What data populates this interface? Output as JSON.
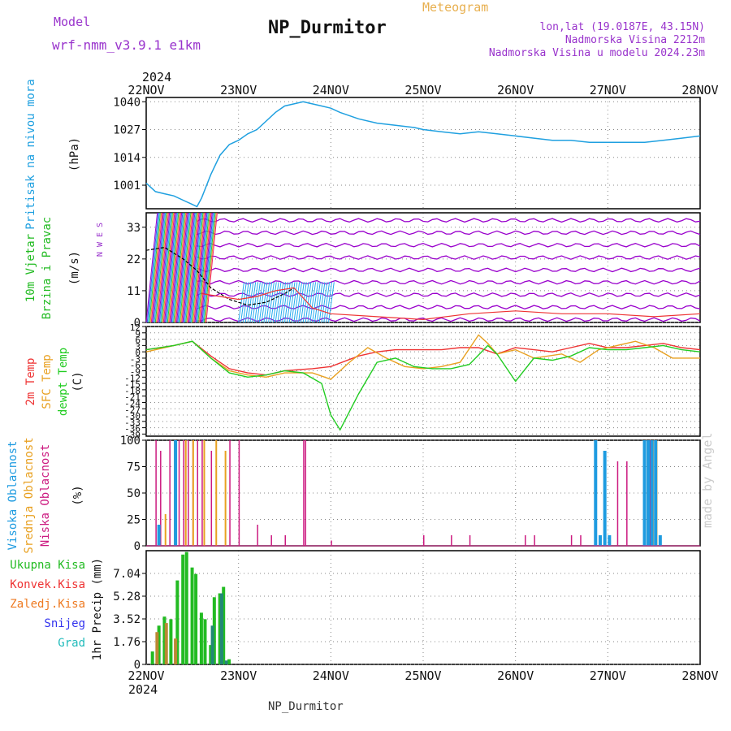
{
  "header": {
    "model_label": "Model",
    "model_value": "wrf-nmm_v3.9.1 e1km",
    "title": "NP_Durmitor",
    "meteogram_label": "Meteogram",
    "coords": "lon,lat (19.0187E, 43.15N)",
    "elevation": "Nadmorska Visina 2212m",
    "model_elevation": "Nadmorska Visina u modelu 2024.23m",
    "watermark": "made by Angel",
    "footer": "NP_Durmitor",
    "year_top": "2024",
    "year_bottom": "2024"
  },
  "colors": {
    "pressure": "#1fa0e0",
    "wind_label": "#22bb22",
    "t2m": "#ee3333",
    "tsfc": "#e8a020",
    "dewpt": "#22cc22",
    "high_cloud": "#1e9be0",
    "mid_cloud": "#e8a020",
    "low_cloud": "#cc1a80",
    "rain": "#22bb22",
    "conv_rain": "#ee3333",
    "frz_rain": "#ee7a22",
    "snow": "#3333ee",
    "grad": "#22bbbb",
    "accent": "#9933cc"
  },
  "chart_data": [
    {
      "type": "line",
      "name": "pressure",
      "ylabel_left": "Pritisak na nivou mora",
      "unit": "(hPa)",
      "x_ticks": [
        "22NOV",
        "23NOV",
        "24NOV",
        "25NOV",
        "26NOV",
        "27NOV",
        "28NOV"
      ],
      "ylim": [
        990,
        1042
      ],
      "yticks": [
        "1040",
        "1027",
        "1014",
        "1001"
      ],
      "series": [
        {
          "x": [
            0,
            0.1,
            0.2,
            0.3,
            0.4,
            0.5,
            0.55,
            0.6,
            0.7,
            0.8,
            0.9,
            1.0,
            1.1,
            1.2,
            1.3,
            1.4,
            1.5,
            1.6,
            1.7,
            1.8,
            1.9,
            2.0,
            2.1,
            2.3,
            2.5,
            2.7,
            2.9,
            3.0,
            3.2,
            3.4,
            3.6,
            3.8,
            4.0,
            4.2,
            4.4,
            4.6,
            4.8,
            5.0,
            5.2,
            5.4,
            5.6,
            5.8,
            6.0
          ],
          "y": [
            1002,
            998,
            997,
            996,
            994,
            992,
            991,
            995,
            1006,
            1015,
            1020,
            1022,
            1025,
            1027,
            1031,
            1035,
            1038,
            1039,
            1040,
            1039,
            1038,
            1037,
            1035,
            1032,
            1030,
            1029,
            1028,
            1027,
            1026,
            1025,
            1026,
            1025,
            1024,
            1023,
            1022,
            1022,
            1021,
            1021,
            1021,
            1021,
            1022,
            1023,
            1024
          ]
        }
      ]
    },
    {
      "type": "line",
      "name": "wind",
      "ylabel_left_1": "10m Vjetar",
      "ylabel_left_2": "Brzina i Pravac",
      "unit": "(m/s)",
      "compass": "N W E S",
      "ylim": [
        0,
        38
      ],
      "yticks": [
        "33",
        "22",
        "11",
        "0"
      ],
      "series": [
        {
          "x": [
            0,
            0.2,
            0.4,
            0.55,
            0.7,
            0.9,
            1.1,
            1.3,
            1.5,
            1.6
          ],
          "y": [
            25,
            26,
            22,
            18,
            12,
            8,
            6,
            7,
            10,
            12
          ]
        },
        {
          "x": [
            0.6,
            0.8,
            1.0,
            1.2,
            1.4,
            1.6,
            1.8,
            2.0,
            2.5,
            3.0,
            3.5,
            4.0,
            4.5,
            5.0,
            5.5,
            6.0
          ],
          "y": [
            10,
            9,
            8,
            9,
            11,
            12,
            5,
            3,
            2,
            1,
            3,
            4,
            3,
            3,
            2,
            3
          ]
        }
      ]
    },
    {
      "type": "line",
      "name": "temperature",
      "ylabel_left_1": "2m Temp",
      "ylabel_left_2": "SFC Temp",
      "ylabel_left_3": "dewpt Temp",
      "unit": "(C)",
      "ylim": [
        -40,
        12
      ],
      "yticks": [
        "12",
        "9",
        "6",
        "3",
        "0",
        "-3",
        "-6",
        "-9",
        "-12",
        "-15",
        "-18",
        "-21",
        "-24",
        "-27",
        "-30",
        "-33",
        "-36",
        "-39"
      ],
      "series": [
        {
          "name": "2m",
          "x": [
            0,
            0.3,
            0.5,
            0.7,
            0.9,
            1.1,
            1.3,
            1.5,
            1.8,
            2.0,
            2.3,
            2.5,
            2.7,
            3.0,
            3.2,
            3.4,
            3.6,
            3.8,
            4.0,
            4.2,
            4.4,
            4.6,
            4.8,
            5.0,
            5.2,
            5.4,
            5.6,
            5.8,
            6.0
          ],
          "y": [
            1,
            3,
            5,
            -2,
            -8,
            -10,
            -11,
            -9,
            -8,
            -7,
            -2,
            0,
            1,
            1,
            1,
            2,
            2,
            -1,
            2,
            1,
            0,
            2,
            4,
            2,
            2,
            3,
            4,
            2,
            1
          ]
        },
        {
          "name": "SFC",
          "x": [
            0,
            0.3,
            0.5,
            0.7,
            0.9,
            1.1,
            1.3,
            1.5,
            1.8,
            2.0,
            2.2,
            2.4,
            2.6,
            2.8,
            3.0,
            3.2,
            3.4,
            3.6,
            3.7,
            3.8,
            4.0,
            4.2,
            4.5,
            4.7,
            4.9,
            5.1,
            5.3,
            5.5,
            5.7,
            6.0
          ],
          "y": [
            0,
            3,
            5,
            -3,
            -9,
            -11,
            -12,
            -10,
            -10,
            -13,
            -5,
            2,
            -3,
            -7,
            -8,
            -7,
            -5,
            8,
            4,
            -1,
            1,
            -3,
            -1,
            -5,
            1,
            3,
            5,
            2,
            -3,
            -3
          ]
        },
        {
          "name": "dewpt",
          "x": [
            0,
            0.3,
            0.5,
            0.7,
            0.9,
            1.1,
            1.3,
            1.5,
            1.7,
            1.9,
            2.0,
            2.1,
            2.3,
            2.5,
            2.7,
            2.9,
            3.1,
            3.3,
            3.5,
            3.7,
            3.8,
            4.0,
            4.2,
            4.4,
            4.6,
            4.8,
            5.0,
            5.2,
            5.4,
            5.6,
            5.8,
            6.0
          ],
          "y": [
            1,
            3,
            5,
            -3,
            -10,
            -12,
            -11,
            -9,
            -10,
            -15,
            -30,
            -37,
            -20,
            -5,
            -3,
            -7,
            -8,
            -8,
            -6,
            3,
            -1,
            -14,
            -3,
            -4,
            -2,
            2,
            1,
            1,
            2,
            3,
            1,
            0
          ]
        }
      ]
    },
    {
      "type": "bar",
      "name": "clouds",
      "ylabel_left_1": "Visoka Oblacnost",
      "ylabel_left_2": "Srednja Oblacnost",
      "ylabel_left_3": "Niska Oblacnost",
      "unit": "(%)",
      "ylim": [
        0,
        100
      ],
      "yticks": [
        "100",
        "75",
        "50",
        "25",
        "0"
      ],
      "series": [
        {
          "name": "low",
          "x": [
            0.1,
            0.15,
            0.25,
            0.35,
            0.4,
            0.45,
            0.5,
            0.55,
            0.6,
            0.7,
            0.9,
            1.0,
            1.2,
            1.35,
            1.5,
            1.7,
            1.72,
            2.0,
            3.0,
            3.3,
            3.5,
            4.1,
            4.2,
            4.6,
            4.7,
            5.1,
            5.2,
            5.45,
            6.0
          ],
          "y": [
            100,
            90,
            100,
            100,
            100,
            100,
            100,
            100,
            100,
            90,
            100,
            100,
            20,
            10,
            10,
            100,
            100,
            5,
            10,
            10,
            10,
            10,
            10,
            10,
            10,
            80,
            80,
            100,
            0
          ]
        },
        {
          "name": "mid",
          "x": [
            0.2,
            0.3,
            0.42,
            0.5,
            0.62,
            0.75,
            0.85,
            5.42,
            5.48,
            5.52
          ],
          "y": [
            30,
            100,
            100,
            100,
            100,
            100,
            90,
            100,
            100,
            100
          ]
        },
        {
          "name": "high",
          "x": [
            0.12,
            0.3,
            4.85,
            4.9,
            4.95,
            5.0,
            5.38,
            5.42,
            5.46,
            5.5,
            5.55
          ],
          "y": [
            20,
            100,
            100,
            10,
            90,
            10,
            100,
            100,
            100,
            100,
            10
          ]
        }
      ]
    },
    {
      "type": "bar",
      "name": "precip",
      "legend": [
        "Ukupna Kisa",
        "Konvek.Kisa",
        "Zaledj.Kisa",
        "Snijeg",
        "Grad"
      ],
      "unit": "1hr Precip (mm)",
      "ylim": [
        0,
        8.8
      ],
      "yticks": [
        "7.04",
        "5.28",
        "3.52",
        "1.76",
        "0"
      ],
      "series": [
        {
          "name": "Ukupna Kisa",
          "x": [
            0.05,
            0.12,
            0.18,
            0.25,
            0.32,
            0.38,
            0.42,
            0.48,
            0.52,
            0.58,
            0.62,
            0.68,
            0.72,
            0.78,
            0.82,
            0.88
          ],
          "y": [
            1.0,
            3.0,
            3.7,
            3.5,
            6.5,
            8.5,
            8.7,
            7.5,
            7.0,
            4.0,
            3.5,
            1.5,
            5.2,
            5.5,
            6.0,
            0.4
          ]
        },
        {
          "name": "Zaledj.Kisa",
          "x": [
            0.1,
            0.2,
            0.3
          ],
          "y": [
            2.5,
            3.2,
            2.0
          ]
        },
        {
          "name": "Grad",
          "x": [
            0.7,
            0.8,
            0.85
          ],
          "y": [
            3.0,
            5.5,
            0.3
          ]
        }
      ]
    }
  ]
}
